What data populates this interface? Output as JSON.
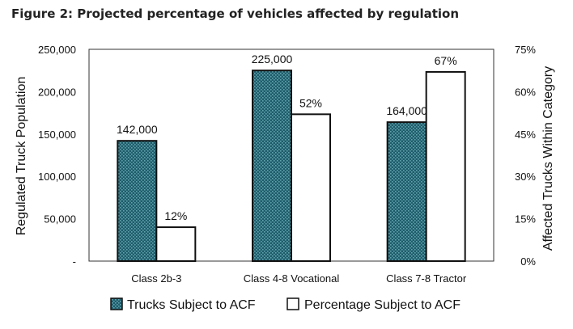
{
  "figure_title": "Figure 2: Projected percentage of vehicles affected by regulation",
  "chart_data": {
    "type": "bar",
    "categories": [
      "Class 2b-3",
      "Class 4-8 Vocational",
      "Class 7-8 Tractor"
    ],
    "series": [
      {
        "name": "Trucks Subject to ACF",
        "axis": "left",
        "values": [
          142000,
          225000,
          164000
        ],
        "value_labels": [
          "142,000",
          "225,000",
          "164,000"
        ],
        "fill": "#1f5c6b",
        "pattern": "dotted"
      },
      {
        "name": "Percentage Subject to ACF",
        "axis": "right",
        "values": [
          12,
          52,
          67
        ],
        "value_labels": [
          "12%",
          "52%",
          "67%"
        ],
        "fill": "#ffffff"
      }
    ],
    "ylabel": "Regulated Truck Population",
    "y2label": "Affected Trucks Within Category",
    "ylim": [
      0,
      250000
    ],
    "y2lim": [
      0,
      75
    ],
    "yticks": [
      "-",
      "50,000",
      "100,000",
      "150,000",
      "200,000",
      "250,000"
    ],
    "y2ticks": [
      "0%",
      "15%",
      "30%",
      "45%",
      "60%",
      "75%"
    ],
    "grid": false,
    "legend_position": "bottom"
  }
}
